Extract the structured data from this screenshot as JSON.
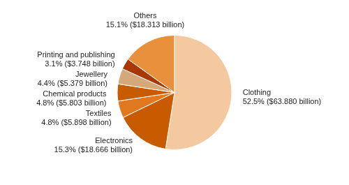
{
  "chart_data": {
    "type": "pie",
    "categories": [
      "Clothing",
      "Electronics",
      "Textiles",
      "Chemical products",
      "Jewellery",
      "Printing and publishing",
      "Others"
    ],
    "values": [
      52.5,
      15.3,
      4.8,
      4.8,
      4.4,
      3.1,
      15.1
    ],
    "value_labels": [
      "52.5% ($63.880 billion)",
      "15.3% ($18.666 billion)",
      "4.8% ($5.898 billion)",
      "4.8% ($5.803 billion)",
      "4.4% ($5.379 billion)",
      "3.1% ($3.748 billion)",
      "15.1% ($18.313 billion)"
    ],
    "colors": [
      "#F5C9A0",
      "#C85A00",
      "#E07820",
      "#C85A00",
      "#D4A878",
      "#A83800",
      "#E8903C"
    ],
    "data_labels": true
  }
}
